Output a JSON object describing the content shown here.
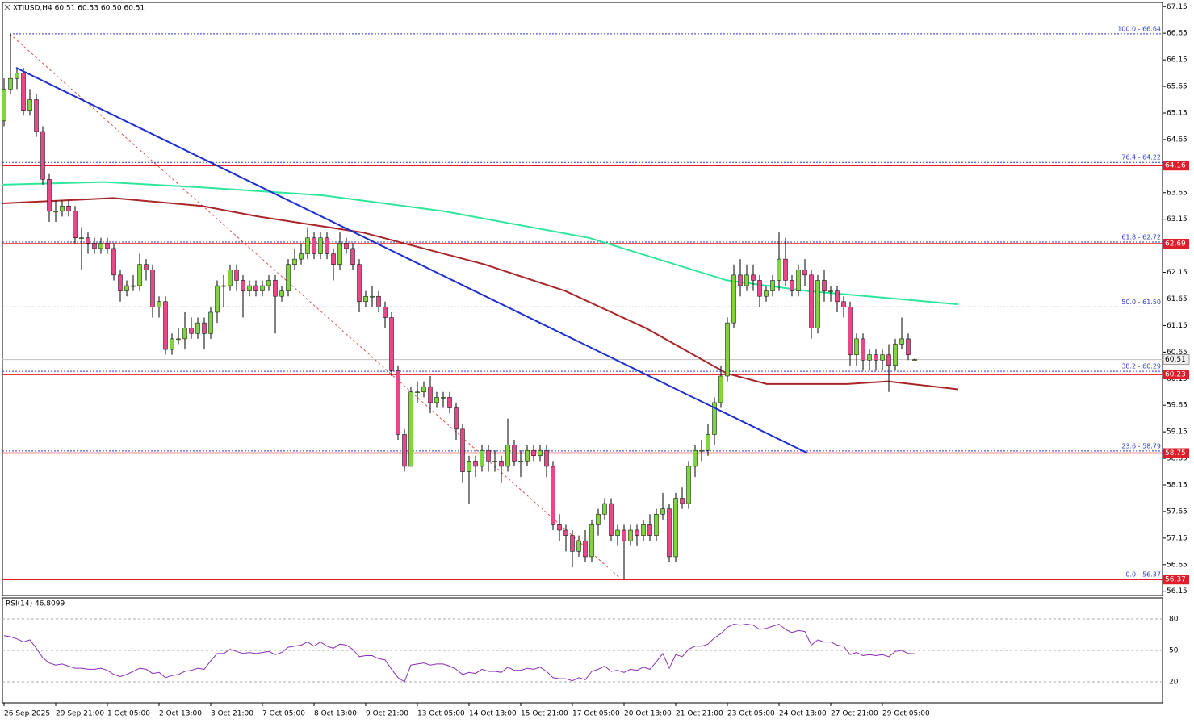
{
  "chart_data": {
    "type": "candlestick",
    "title": "XTIUSD,H4  60.51 60.53 60.50 60.51",
    "categories": [
      "26 Sep 2025",
      null,
      null,
      null,
      null,
      null,
      null,
      null,
      "29 Sep 21:00",
      null,
      null,
      null,
      null,
      null,
      null,
      null,
      "1 Oct 05:00",
      null,
      null,
      null,
      null,
      null,
      null,
      null,
      "2 Oct 13:00",
      null,
      null,
      null,
      null,
      null,
      null,
      null,
      "3 Oct 21:00",
      null,
      null,
      null,
      null,
      null,
      null,
      null,
      "7 Oct 05:00",
      null,
      null,
      null,
      null,
      null,
      null,
      null,
      "8 Oct 13:00",
      null,
      null,
      null,
      null,
      null,
      null,
      null,
      "9 Oct 21:00",
      null,
      null,
      null,
      null,
      null,
      null,
      null,
      "13 Oct 05:00",
      null,
      null,
      null,
      null,
      null,
      null,
      null,
      "14 Oct 13:00",
      null,
      null,
      null,
      null,
      null,
      null,
      null,
      "15 Oct 21:00",
      null,
      null,
      null,
      null,
      null,
      null,
      null,
      "17 Oct 05:00",
      null,
      null,
      null,
      null,
      null,
      null,
      null,
      "20 Oct 13:00",
      null,
      null,
      null,
      null,
      null,
      null,
      null,
      "21 Oct 21:00",
      null,
      null,
      null,
      null,
      null,
      null,
      null,
      "23 Oct 05:00",
      null,
      null,
      null,
      null,
      null,
      null,
      null,
      "24 Oct 13:00",
      null,
      null,
      null,
      null,
      null,
      null,
      null,
      "27 Oct 21:00",
      null,
      null,
      null,
      null,
      null,
      null,
      null,
      "29 Oct 05:00",
      null,
      null,
      null,
      null,
      null
    ],
    "open": [
      65.0,
      65.6,
      65.8,
      65.9,
      65.2,
      65.4,
      64.8,
      63.9,
      63.3,
      63.3,
      63.4,
      63.3,
      62.8,
      62.8,
      62.7,
      62.6,
      62.7,
      62.6,
      62.1,
      61.8,
      61.9,
      61.9,
      62.3,
      62.2,
      61.5,
      61.6,
      60.7,
      60.9,
      60.9,
      61.1,
      61.0,
      61.2,
      61.0,
      61.4,
      61.9,
      61.9,
      62.2,
      62.0,
      61.8,
      61.9,
      61.8,
      61.9,
      62.0,
      61.7,
      61.8,
      62.3,
      62.4,
      62.5,
      62.8,
      62.5,
      62.8,
      62.5,
      62.3,
      62.7,
      62.6,
      62.3,
      61.6,
      61.7,
      61.7,
      61.5,
      61.3,
      60.3,
      59.1,
      58.5,
      59.9,
      59.9,
      60.0,
      59.7,
      59.8,
      59.8,
      59.6,
      59.2,
      58.4,
      58.6,
      58.5,
      58.8,
      58.6,
      58.6,
      58.5,
      58.9,
      58.6,
      58.6,
      58.8,
      58.7,
      58.8,
      58.5,
      57.4,
      57.3,
      57.2,
      56.9,
      57.1,
      56.8,
      57.4,
      57.6,
      57.8,
      57.2,
      57.3,
      57.1,
      57.3,
      57.2,
      57.4,
      57.2,
      57.6,
      57.7,
      56.8,
      57.9,
      57.8,
      58.5,
      58.8,
      58.8,
      59.1,
      59.7,
      60.2,
      61.2,
      62.1,
      61.9,
      62.1,
      62.0,
      61.7,
      61.8,
      62.0,
      62.4,
      62.0,
      61.8,
      62.2,
      62.1,
      61.1,
      62.0,
      61.8,
      61.8,
      61.6,
      61.5,
      60.6,
      60.9,
      60.5,
      60.6,
      60.5,
      60.6,
      60.4,
      60.8,
      60.9,
      60.51
    ],
    "high": [
      65.8,
      66.64,
      66.0,
      66.0,
      65.6,
      65.5,
      64.9,
      64.0,
      63.5,
      63.5,
      63.5,
      63.4,
      63.0,
      62.9,
      62.8,
      62.8,
      62.8,
      62.7,
      62.2,
      62.0,
      62.1,
      62.5,
      62.4,
      62.3,
      61.7,
      61.7,
      61.0,
      61.1,
      61.4,
      61.3,
      61.3,
      61.3,
      61.5,
      62.0,
      62.1,
      62.3,
      62.3,
      62.1,
      62.0,
      62.0,
      62.0,
      62.1,
      62.1,
      61.9,
      62.4,
      62.6,
      62.7,
      63.0,
      62.9,
      62.9,
      62.9,
      62.6,
      62.9,
      62.8,
      62.7,
      62.4,
      61.8,
      61.9,
      61.8,
      61.6,
      61.4,
      60.4,
      59.2,
      60.0,
      60.1,
      60.1,
      60.2,
      59.9,
      59.9,
      59.9,
      59.7,
      59.3,
      58.7,
      58.7,
      58.9,
      58.9,
      58.8,
      58.7,
      59.4,
      59.0,
      58.8,
      58.9,
      58.9,
      58.9,
      58.9,
      58.6,
      57.6,
      57.4,
      57.3,
      57.2,
      57.3,
      57.5,
      57.7,
      57.9,
      57.9,
      57.4,
      57.4,
      57.4,
      57.4,
      57.5,
      57.6,
      57.7,
      58.0,
      57.8,
      58.0,
      58.1,
      58.6,
      58.9,
      59.0,
      59.3,
      59.8,
      60.4,
      61.3,
      62.3,
      62.4,
      62.3,
      62.3,
      62.1,
      61.9,
      62.1,
      62.9,
      62.8,
      62.1,
      62.3,
      62.4,
      62.2,
      62.1,
      62.2,
      61.9,
      61.9,
      61.7,
      61.6,
      61.0,
      61.0,
      60.7,
      60.7,
      60.7,
      60.8,
      60.9,
      61.3,
      61.0,
      60.53
    ],
    "low": [
      64.9,
      65.5,
      65.6,
      65.1,
      65.1,
      64.7,
      63.8,
      63.1,
      63.1,
      63.2,
      63.2,
      62.7,
      62.2,
      62.5,
      62.5,
      62.5,
      62.5,
      62.0,
      61.6,
      61.7,
      61.8,
      61.8,
      62.0,
      61.3,
      61.3,
      60.6,
      60.6,
      60.8,
      60.7,
      60.9,
      60.9,
      60.7,
      60.9,
      61.2,
      61.5,
      61.8,
      61.8,
      61.3,
      61.7,
      61.7,
      61.7,
      61.8,
      61.0,
      61.6,
      61.7,
      62.2,
      62.3,
      62.4,
      62.4,
      62.4,
      62.4,
      62.0,
      62.2,
      62.5,
      62.2,
      61.4,
      61.5,
      61.5,
      61.4,
      61.1,
      60.2,
      59.0,
      58.4,
      58.5,
      59.7,
      59.8,
      59.5,
      59.6,
      59.6,
      59.5,
      59.0,
      58.2,
      57.8,
      58.3,
      58.4,
      58.4,
      58.4,
      58.2,
      58.4,
      58.5,
      58.3,
      58.5,
      58.6,
      58.6,
      58.3,
      57.3,
      57.1,
      56.9,
      56.6,
      56.8,
      56.7,
      56.7,
      57.2,
      57.5,
      57.1,
      57.0,
      56.37,
      57.0,
      57.0,
      57.1,
      57.1,
      57.1,
      57.5,
      56.7,
      56.7,
      57.7,
      57.7,
      58.3,
      58.6,
      58.7,
      58.9,
      59.6,
      60.1,
      61.1,
      61.7,
      61.8,
      61.8,
      61.5,
      61.6,
      61.7,
      61.8,
      61.9,
      61.7,
      61.7,
      61.9,
      60.9,
      61.0,
      61.6,
      61.6,
      61.4,
      61.3,
      60.4,
      60.4,
      60.3,
      60.3,
      60.3,
      60.3,
      59.9,
      60.3,
      60.7,
      60.5,
      60.5
    ],
    "close": [
      65.6,
      65.8,
      65.9,
      65.2,
      65.4,
      64.8,
      63.9,
      63.3,
      63.3,
      63.4,
      63.3,
      62.8,
      62.8,
      62.7,
      62.6,
      62.7,
      62.6,
      62.1,
      61.8,
      61.9,
      61.9,
      62.3,
      62.2,
      61.5,
      61.6,
      60.7,
      60.9,
      60.9,
      61.1,
      61.0,
      61.2,
      61.0,
      61.4,
      61.9,
      61.9,
      62.2,
      62.0,
      61.8,
      61.9,
      61.8,
      61.9,
      62.0,
      61.7,
      61.8,
      62.3,
      62.4,
      62.5,
      62.8,
      62.5,
      62.8,
      62.5,
      62.3,
      62.7,
      62.6,
      62.3,
      61.6,
      61.7,
      61.7,
      61.5,
      61.3,
      60.3,
      59.1,
      58.5,
      59.9,
      59.9,
      60.0,
      59.7,
      59.8,
      59.8,
      59.6,
      59.2,
      58.4,
      58.6,
      58.5,
      58.8,
      58.6,
      58.6,
      58.5,
      58.9,
      58.6,
      58.6,
      58.8,
      58.7,
      58.8,
      58.5,
      57.4,
      57.3,
      57.2,
      56.9,
      57.1,
      56.8,
      57.4,
      57.6,
      57.8,
      57.2,
      57.3,
      57.1,
      57.3,
      57.2,
      57.4,
      57.2,
      57.6,
      57.7,
      56.8,
      57.9,
      57.8,
      58.5,
      58.8,
      58.8,
      59.1,
      59.7,
      60.2,
      61.2,
      62.1,
      61.9,
      62.1,
      62.0,
      61.7,
      61.8,
      62.0,
      62.4,
      62.0,
      61.8,
      62.2,
      62.1,
      61.1,
      62.0,
      61.8,
      61.8,
      61.6,
      61.5,
      60.6,
      60.9,
      60.5,
      60.6,
      60.5,
      60.6,
      60.4,
      60.8,
      60.9,
      60.6,
      60.51
    ],
    "up_color": "#7ed63c",
    "down_color": "#e8488a",
    "ylim": [
      56.07,
      67.23
    ],
    "yticks": [
      67.15,
      66.65,
      66.15,
      65.65,
      65.15,
      64.65,
      64.15,
      63.65,
      63.15,
      62.65,
      62.15,
      61.65,
      61.15,
      60.65,
      60.15,
      59.65,
      59.15,
      58.65,
      58.15,
      57.65,
      57.15,
      56.65,
      56.15
    ],
    "levels": [
      64.16,
      62.69,
      60.23,
      58.75,
      56.37
    ],
    "level_color": "#e01e2a",
    "current_price": 60.51,
    "fib_levels": [
      {
        "value": 66.64,
        "label": "100.0 - 66.64"
      },
      {
        "value": 64.22,
        "label": "76.4 - 64.22"
      },
      {
        "value": 62.72,
        "label": "61.8 - 62.72"
      },
      {
        "value": 61.5,
        "label": "50.0 - 61.50"
      },
      {
        "value": 60.29,
        "label": "38.2 - 60.29"
      },
      {
        "value": 58.79,
        "label": "23.6 - 58.79"
      },
      {
        "value": 56.37,
        "label": "0.0 - 56.37"
      }
    ],
    "fib_color": "#2a3bd6",
    "fib_line": {
      "x": [
        0.875,
        95.6
      ],
      "values": [
        66.64,
        56.37
      ],
      "color": "#e05050"
    },
    "trendline": {
      "x": [
        1.875,
        124.4
      ],
      "values": [
        66.0,
        58.75
      ],
      "color": "#1c2fd0"
    },
    "moving_averages": [
      {
        "color": "#2ee69a",
        "x": [
          -0.25,
          15.6,
          30.6,
          49.4,
          68.1,
          90.6,
          111.9,
          124.4,
          147.75
        ],
        "values": [
          63.8,
          63.85,
          63.75,
          63.6,
          63.3,
          62.8,
          62.0,
          61.8,
          61.55
        ]
      },
      {
        "color": "#a8262a",
        "x": [
          -0.25,
          16.9,
          30.6,
          39.4,
          55.6,
          74.4,
          86.9,
          99.4,
          111.9,
          118.1,
          130.6,
          136.9,
          147.75
        ],
        "values": [
          63.45,
          63.55,
          63.4,
          63.2,
          62.9,
          62.3,
          61.8,
          61.1,
          60.25,
          60.05,
          60.05,
          60.1,
          59.95
        ]
      }
    ],
    "rsi": {
      "title": "RSI(14) 46.8099",
      "color": "#8a2fb8",
      "ylim": [
        0,
        100
      ],
      "yticks": [
        80,
        50,
        20
      ],
      "values": [
        64,
        63,
        61,
        58,
        60,
        52,
        43,
        38,
        36,
        37,
        35,
        33,
        33,
        32,
        32,
        33,
        31,
        27,
        25,
        27,
        30,
        33,
        32,
        28,
        29,
        24,
        26,
        27,
        30,
        31,
        33,
        32,
        40,
        47,
        47,
        51,
        49,
        47,
        48,
        47,
        48,
        49,
        46,
        48,
        53,
        54,
        55,
        58,
        54,
        58,
        54,
        52,
        56,
        55,
        51,
        44,
        45,
        45,
        42,
        41,
        32,
        24,
        20,
        36,
        37,
        38,
        36,
        37,
        37,
        35,
        32,
        27,
        29,
        28,
        32,
        30,
        30,
        29,
        34,
        31,
        31,
        33,
        32,
        34,
        30,
        24,
        23,
        23,
        21,
        24,
        22,
        30,
        32,
        35,
        30,
        31,
        29,
        32,
        31,
        34,
        32,
        39,
        47,
        33,
        46,
        44,
        51,
        54,
        54,
        56,
        62,
        66,
        72,
        75,
        74,
        75,
        74,
        70,
        71,
        73,
        75,
        70,
        67,
        69,
        68,
        55,
        60,
        58,
        58,
        55,
        54,
        46,
        48,
        45,
        46,
        45,
        46,
        44,
        49,
        50,
        47,
        46.8099
      ]
    }
  }
}
